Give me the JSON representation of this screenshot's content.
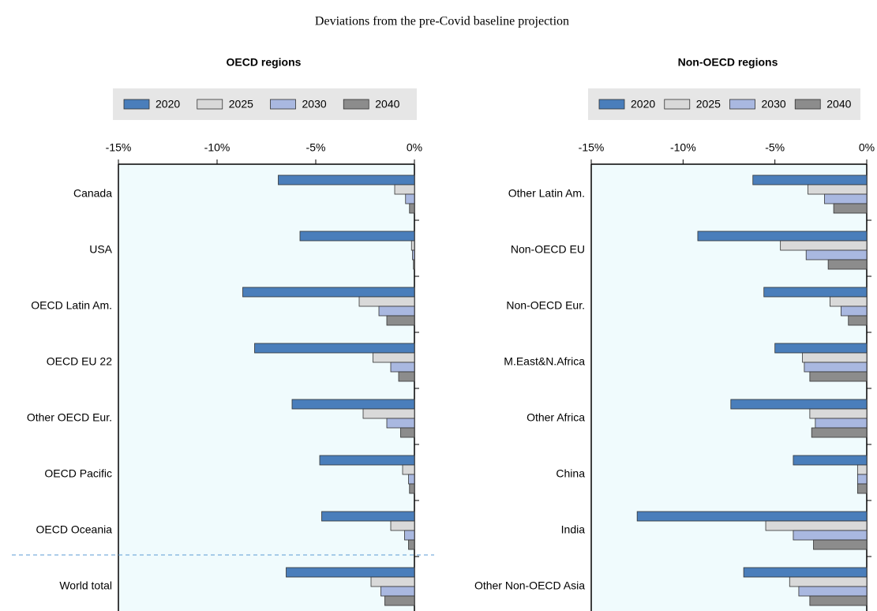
{
  "title": "Deviations from the pre-Covid baseline projection",
  "chart_data": [
    {
      "type": "bar",
      "orientation": "horizontal",
      "title": "OECD regions",
      "categories": [
        "Canada",
        "USA",
        "OECD Latin Am.",
        "OECD EU 22",
        "Other OECD Eur.",
        "OECD Pacific",
        "OECD Oceania",
        "World total"
      ],
      "series": [
        {
          "name": "2020",
          "color": "#4a7ebb",
          "values": [
            -6.9,
            -5.8,
            -8.7,
            -8.1,
            -6.2,
            -4.8,
            -4.7,
            -6.5
          ]
        },
        {
          "name": "2025",
          "color": "#d9d9d9",
          "values": [
            -1.0,
            -0.15,
            -2.8,
            -2.1,
            -2.6,
            -0.6,
            -1.2,
            -2.2
          ]
        },
        {
          "name": "2030",
          "color": "#a9b8e0",
          "values": [
            -0.45,
            -0.1,
            -1.8,
            -1.2,
            -1.4,
            -0.3,
            -0.5,
            -1.7
          ]
        },
        {
          "name": "2040",
          "color": "#8c8c8c",
          "values": [
            -0.25,
            -0.05,
            -1.4,
            -0.8,
            -0.7,
            -0.25,
            -0.3,
            -1.5
          ]
        }
      ],
      "xlim": [
        -15,
        0
      ],
      "xticks": [
        {
          "value": -15,
          "label": "-15%"
        },
        {
          "value": -10,
          "label": "-10%"
        },
        {
          "value": -5,
          "label": "-5%"
        },
        {
          "value": 0,
          "label": "0%"
        }
      ],
      "separator_before_category": 7
    },
    {
      "type": "bar",
      "orientation": "horizontal",
      "title": "Non-OECD regions",
      "categories": [
        "Other Latin Am.",
        "Non-OECD EU",
        "Non-OECD Eur.",
        "M.East&N.Africa",
        "Other Africa",
        "China",
        "India",
        "Other Non-OECD Asia"
      ],
      "series": [
        {
          "name": "2020",
          "color": "#4a7ebb",
          "values": [
            -6.2,
            -9.2,
            -5.6,
            -5.0,
            -7.4,
            -4.0,
            -12.5,
            -6.7
          ]
        },
        {
          "name": "2025",
          "color": "#d9d9d9",
          "values": [
            -3.2,
            -4.7,
            -2.0,
            -3.5,
            -3.1,
            -0.5,
            -5.5,
            -4.2
          ]
        },
        {
          "name": "2030",
          "color": "#a9b8e0",
          "values": [
            -2.3,
            -3.3,
            -1.4,
            -3.4,
            -2.8,
            -0.5,
            -4.0,
            -3.7
          ]
        },
        {
          "name": "2040",
          "color": "#8c8c8c",
          "values": [
            -1.8,
            -2.1,
            -1.0,
            -3.1,
            -3.0,
            -0.5,
            -2.9,
            -3.1
          ]
        }
      ],
      "xlim": [
        -15,
        0
      ],
      "xticks": [
        {
          "value": -15,
          "label": "-15%"
        },
        {
          "value": -10,
          "label": "-10%"
        },
        {
          "value": -5,
          "label": "-5%"
        },
        {
          "value": 0,
          "label": "0%"
        }
      ]
    }
  ]
}
